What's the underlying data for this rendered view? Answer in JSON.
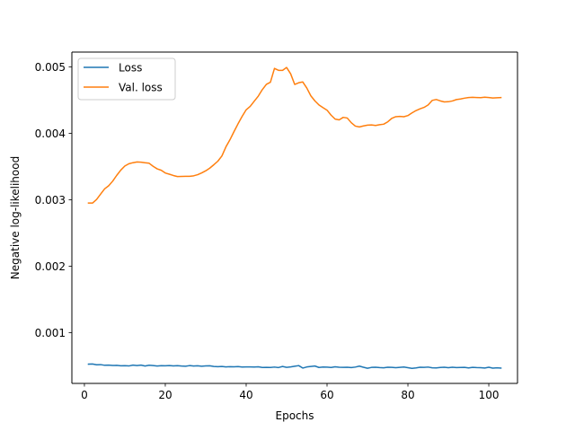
{
  "chart_data": {
    "type": "line",
    "title": "",
    "xlabel": "Epochs",
    "ylabel": "Negative log-likelihood",
    "xlim": [
      -3.1,
      107.1
    ],
    "ylim": [
      0.000235,
      0.005225
    ],
    "x_ticks": [
      0,
      20,
      40,
      60,
      80,
      100
    ],
    "x_tick_labels": [
      "0",
      "20",
      "40",
      "60",
      "80",
      "100"
    ],
    "y_ticks": [
      0.001,
      0.002,
      0.003,
      0.004,
      0.005
    ],
    "y_tick_labels": [
      "0.001",
      "0.002",
      "0.003",
      "0.004",
      "0.005"
    ],
    "grid": false,
    "legend_position": "top-left",
    "series": [
      {
        "name": "Loss",
        "color": "#1f77b4",
        "x": [
          1,
          2,
          3,
          4,
          5,
          6,
          7,
          8,
          9,
          10,
          11,
          12,
          13,
          14,
          15,
          16,
          17,
          18,
          19,
          20,
          21,
          22,
          23,
          24,
          25,
          26,
          27,
          28,
          29,
          30,
          31,
          32,
          33,
          34,
          35,
          36,
          37,
          38,
          39,
          40,
          41,
          42,
          43,
          44,
          45,
          46,
          47,
          48,
          49,
          50,
          51,
          52,
          53,
          54,
          55,
          56,
          57,
          58,
          59,
          60,
          61,
          62,
          63,
          64,
          65,
          66,
          67,
          68,
          69,
          70,
          71,
          72,
          73,
          74,
          75,
          76,
          77,
          78,
          79,
          80,
          81,
          82,
          83,
          84,
          85,
          86,
          87,
          88,
          89,
          90,
          91,
          92,
          93,
          94,
          95,
          96,
          97,
          98,
          99,
          100,
          101,
          102,
          103
        ],
        "y": [
          0.000525,
          0.000528,
          0.000515,
          0.000518,
          0.000508,
          0.00051,
          0.000505,
          0.000507,
          0.0005,
          0.000502,
          0.000498,
          0.00051,
          0.000503,
          0.000511,
          0.000497,
          0.000509,
          0.000504,
          0.000497,
          0.000502,
          0.000501,
          0.000503,
          0.000499,
          0.000502,
          0.000497,
          0.000494,
          0.000503,
          0.000497,
          0.0005,
          0.000494,
          0.000498,
          0.0005,
          0.00049,
          0.000487,
          0.000491,
          0.000483,
          0.000487,
          0.000485,
          0.000488,
          0.000482,
          0.000484,
          0.000483,
          0.000481,
          0.000485,
          0.000475,
          0.000477,
          0.000475,
          0.000481,
          0.000474,
          0.00049,
          0.000477,
          0.000483,
          0.000493,
          0.000503,
          0.000466,
          0.000483,
          0.00049,
          0.000497,
          0.000475,
          0.000482,
          0.00048,
          0.000475,
          0.000485,
          0.000478,
          0.000476,
          0.000479,
          0.000473,
          0.000481,
          0.000495,
          0.000478,
          0.000463,
          0.000476,
          0.000479,
          0.000473,
          0.00047,
          0.000478,
          0.000477,
          0.000471,
          0.000476,
          0.000482,
          0.000472,
          0.000461,
          0.000469,
          0.000479,
          0.000476,
          0.000481,
          0.00047,
          0.000469,
          0.000475,
          0.000478,
          0.000471,
          0.000478,
          0.000474,
          0.000475,
          0.000476,
          0.000468,
          0.000477,
          0.000473,
          0.000471,
          0.000467,
          0.000478,
          0.000465,
          0.00047,
          0.000466
        ]
      },
      {
        "name": "Val. loss",
        "color": "#ff7f0e",
        "x": [
          1,
          2,
          3,
          4,
          5,
          6,
          7,
          8,
          9,
          10,
          11,
          12,
          13,
          14,
          15,
          16,
          17,
          18,
          19,
          20,
          21,
          22,
          23,
          24,
          25,
          26,
          27,
          28,
          29,
          30,
          31,
          32,
          33,
          34,
          35,
          36,
          37,
          38,
          39,
          40,
          41,
          42,
          43,
          44,
          45,
          46,
          47,
          48,
          49,
          50,
          51,
          52,
          53,
          54,
          55,
          56,
          57,
          58,
          59,
          60,
          61,
          62,
          63,
          64,
          65,
          66,
          67,
          68,
          69,
          70,
          71,
          72,
          73,
          74,
          75,
          76,
          77,
          78,
          79,
          80,
          81,
          82,
          83,
          84,
          85,
          86,
          87,
          88,
          89,
          90,
          91,
          92,
          93,
          94,
          95,
          96,
          97,
          98,
          99,
          100,
          101,
          102,
          103
        ],
        "y": [
          0.002951,
          0.002951,
          0.003005,
          0.003086,
          0.003165,
          0.003212,
          0.003282,
          0.003369,
          0.003448,
          0.003509,
          0.003543,
          0.003559,
          0.00357,
          0.003567,
          0.003558,
          0.003551,
          0.003504,
          0.003466,
          0.003445,
          0.003404,
          0.003386,
          0.003366,
          0.00335,
          0.003352,
          0.003353,
          0.003354,
          0.003361,
          0.003378,
          0.003405,
          0.003437,
          0.003477,
          0.003528,
          0.003582,
          0.003661,
          0.003798,
          0.003906,
          0.004028,
          0.004146,
          0.004256,
          0.004356,
          0.004408,
          0.004485,
          0.004562,
          0.00466,
          0.004739,
          0.004771,
          0.004979,
          0.00495,
          0.00495,
          0.004993,
          0.004898,
          0.004738,
          0.004763,
          0.004775,
          0.004683,
          0.004566,
          0.00449,
          0.004429,
          0.004388,
          0.00435,
          0.004275,
          0.004216,
          0.004204,
          0.004242,
          0.004232,
          0.004161,
          0.00411,
          0.004098,
          0.004113,
          0.004124,
          0.004128,
          0.00412,
          0.004131,
          0.004139,
          0.004174,
          0.004226,
          0.004252,
          0.004256,
          0.004251,
          0.004269,
          0.004309,
          0.004344,
          0.00437,
          0.004392,
          0.004429,
          0.004497,
          0.004511,
          0.00449,
          0.004475,
          0.004477,
          0.004489,
          0.00451,
          0.004518,
          0.004531,
          0.004541,
          0.004544,
          0.004541,
          0.004538,
          0.004546,
          0.004541,
          0.004533,
          0.004537,
          0.00454
        ]
      }
    ]
  }
}
